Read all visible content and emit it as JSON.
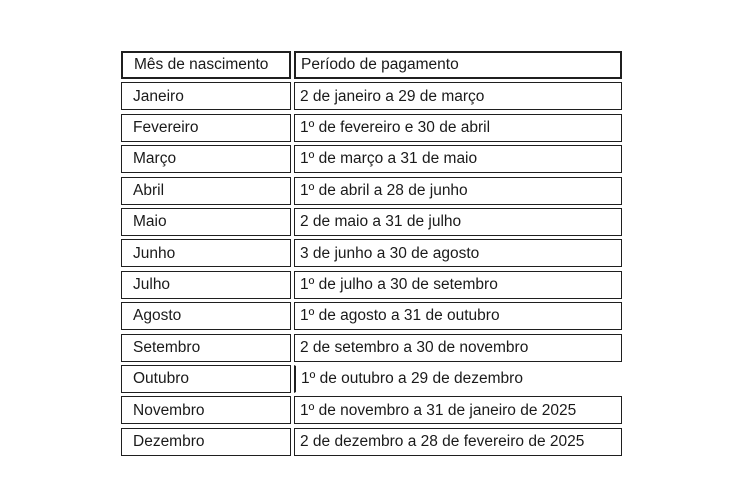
{
  "table": {
    "header": {
      "month": "Mês de nascimento",
      "period": "Período de pagamento"
    },
    "rows": [
      {
        "month": "Janeiro",
        "period": "2 de janeiro a 29 de março"
      },
      {
        "month": "Fevereiro",
        "period": "1º de fevereiro e 30 de abril"
      },
      {
        "month": "Março",
        "period": "1º de março a 31 de maio"
      },
      {
        "month": "Abril",
        "period": "1º de abril a 28 de junho"
      },
      {
        "month": "Maio",
        "period": "2 de maio a 31 de julho"
      },
      {
        "month": "Junho",
        "period": "3 de junho a 30 de agosto"
      },
      {
        "month": "Julho",
        "period": "1º de julho a 30 de setembro"
      },
      {
        "month": "Agosto",
        "period": "1º de agosto a 31 de outubro"
      },
      {
        "month": "Setembro",
        "period": "2 de setembro a 30 de novembro"
      },
      {
        "month": "Outubro",
        "period": "1º de outubro a 29 de dezembro"
      },
      {
        "month": "Novembro",
        "period": "1º de novembro a 31 de janeiro de 2025"
      },
      {
        "month": "Dezembro",
        "period": "2 de dezembro a 28 de fevereiro de 2025"
      }
    ],
    "colors": {
      "border": "#1f1f1f",
      "text": "#1a1a1a",
      "background": "#ffffff"
    }
  }
}
